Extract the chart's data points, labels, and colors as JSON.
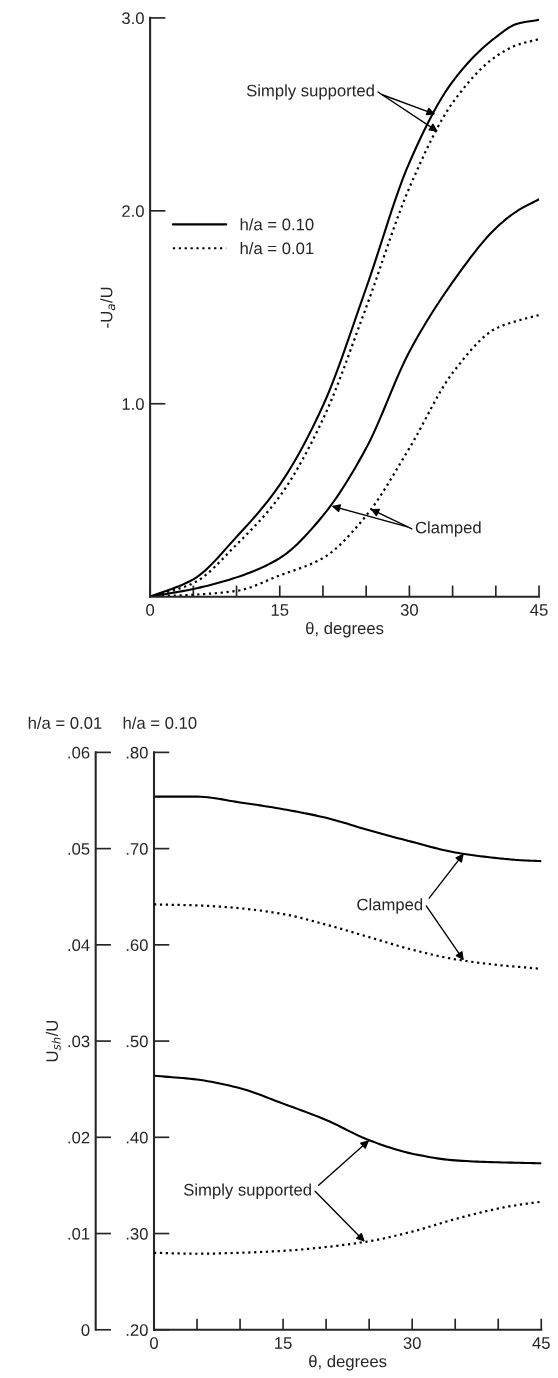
{
  "chart_data": [
    {
      "type": "line",
      "xlabel": "θ, degrees",
      "ylabel": "-U$_{a}$/U",
      "xlim": [
        0,
        45
      ],
      "ylim": [
        0,
        3
      ],
      "xticks": [
        0,
        {
          "value": 5,
          "label": null
        },
        {
          "value": 10,
          "label": null
        },
        15,
        {
          "value": 20,
          "label": null
        },
        {
          "value": 25,
          "label": null
        },
        30,
        {
          "value": 35,
          "label": null
        },
        {
          "value": 40,
          "label": null
        },
        45
      ],
      "yticks": [
        {
          "value": 1,
          "label": "1.0"
        },
        {
          "value": 2,
          "label": "2.0"
        },
        {
          "value": 3,
          "label": "3.0"
        }
      ],
      "x": [
        0,
        5,
        10,
        15,
        20,
        25,
        30,
        35,
        40,
        42.5,
        45
      ],
      "series": [
        {
          "name": "h/a = 0.10",
          "color": "#000000",
          "line_style": "solid",
          "values": [
            0,
            0.09,
            0.31,
            0.58,
            0.99,
            1.6,
            2.25,
            2.67,
            2.9,
            2.97,
            2.99
          ]
        },
        {
          "name": "h/a = 0.01",
          "color": "#000000",
          "line_style": "dotted",
          "values": [
            0,
            0.07,
            0.27,
            0.52,
            0.92,
            1.5,
            2.12,
            2.56,
            2.8,
            2.86,
            2.89
          ]
        },
        {
          "color": "#000000",
          "line_style": "solid",
          "values": [
            0,
            0.04,
            0.1,
            0.2,
            0.42,
            0.77,
            1.27,
            1.63,
            1.91,
            2.0,
            2.06
          ]
        },
        {
          "color": "#000000",
          "line_style": "dotted",
          "values": [
            0,
            0.01,
            0.03,
            0.11,
            0.2,
            0.42,
            0.77,
            1.16,
            1.39,
            1.43,
            1.46
          ]
        }
      ],
      "annotations": [
        {
          "text": "Simply supported",
          "x": 33,
          "y": 2.5
        },
        {
          "text": "Clamped",
          "x": 21,
          "y": 0.47
        }
      ],
      "legend": "left",
      "grid": false
    },
    {
      "type": "line",
      "xlabel": "θ, degrees",
      "y2label": "U$_{sh}$/U",
      "xlim": [
        0,
        45
      ],
      "ylim": [
        0.2,
        0.8
      ],
      "y2lim": [
        0,
        0.06
      ],
      "xticks": [
        0,
        {
          "value": 5,
          "label": null
        },
        {
          "value": 10,
          "label": null
        },
        15,
        {
          "value": 20,
          "label": null
        },
        {
          "value": 25,
          "label": null
        },
        30,
        {
          "value": 35,
          "label": null
        },
        {
          "value": 40,
          "label": null
        },
        45
      ],
      "yticks": [
        {
          "value": 0.2,
          "label": ".20"
        },
        {
          "value": 0.3,
          "label": ".30"
        },
        {
          "value": 0.4,
          "label": ".40"
        },
        {
          "value": 0.5,
          "label": ".50"
        },
        {
          "value": 0.6,
          "label": ".60"
        },
        {
          "value": 0.7,
          "label": ".70"
        },
        {
          "value": 0.8,
          "label": ".80"
        }
      ],
      "y2ticks": [
        0,
        {
          "value": 0.01,
          "label": ".01"
        },
        {
          "value": 0.02,
          "label": ".02"
        },
        {
          "value": 0.03,
          "label": ".03"
        },
        {
          "value": 0.04,
          "label": ".04"
        },
        {
          "value": 0.05,
          "label": ".05"
        },
        {
          "value": 0.06,
          "label": ".06"
        }
      ],
      "x": [
        0,
        5,
        10,
        15,
        20,
        25,
        30,
        35,
        40,
        42.5,
        45
      ],
      "series": [
        {
          "color": "#000000",
          "line_style": "solid",
          "values": [
            0.754,
            0.754,
            0.748,
            0.741,
            0.732,
            0.719,
            0.707,
            0.696,
            0.69,
            0.688,
            0.687
          ]
        },
        {
          "color": "#000000",
          "line_style": "dotted",
          "axis": "y2",
          "values": [
            0.0442,
            0.0441,
            0.0438,
            0.0432,
            0.0421,
            0.0408,
            0.0395,
            0.0385,
            0.0379,
            0.0377,
            0.0375
          ]
        },
        {
          "color": "#000000",
          "line_style": "solid",
          "values": [
            0.464,
            0.46,
            0.451,
            0.435,
            0.418,
            0.397,
            0.383,
            0.376,
            0.374,
            0.3735,
            0.373
          ]
        },
        {
          "color": "#000000",
          "line_style": "dotted",
          "axis": "y2",
          "values": [
            0.008,
            0.0079,
            0.008,
            0.0082,
            0.0086,
            0.0092,
            0.0102,
            0.0115,
            0.0126,
            0.013,
            0.0133
          ]
        }
      ],
      "annotations": [
        "h/a = 0.01",
        "h/a = 0.10",
        {
          "text": "Clamped",
          "x": 36,
          "y": 0.695
        },
        {
          "text": "Simply supported",
          "x": 25,
          "y": 0.397
        }
      ],
      "grid": false
    }
  ]
}
